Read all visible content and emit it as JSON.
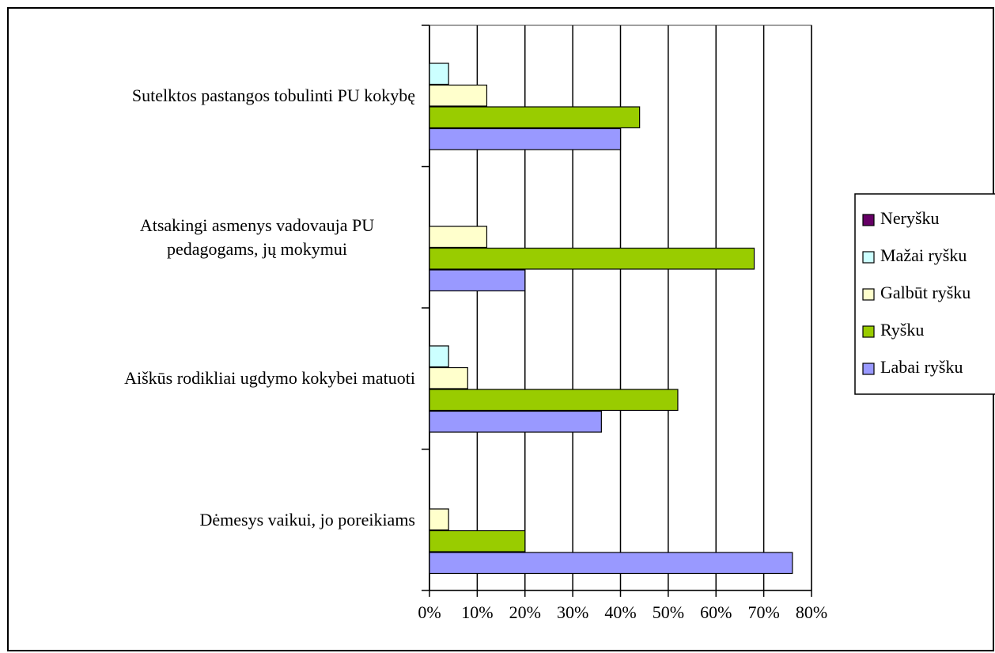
{
  "chart_data": {
    "type": "hbar",
    "categories": [
      "Sutelktos pastangos tobulinti PU kokybę",
      "Atsakingi asmenys vadovauja PU pedagogams, jų mokymui",
      "Aiškūs rodikliai ugdymo kokybei matuoti",
      "Dėmesys vaikui, jo poreikiams"
    ],
    "series": [
      {
        "name": "Neryšku",
        "color": "#660066",
        "values": [
          0,
          0,
          0,
          0
        ]
      },
      {
        "name": "Mažai ryšku",
        "color": "#ccffff",
        "values": [
          4,
          0,
          4,
          0
        ]
      },
      {
        "name": "Galbūt ryšku",
        "color": "#ffffcc",
        "values": [
          12,
          12,
          8,
          4
        ]
      },
      {
        "name": "Ryšku",
        "color": "#99cc00",
        "values": [
          44,
          68,
          52,
          20
        ]
      },
      {
        "name": "Labai ryšku",
        "color": "#9999ff",
        "values": [
          40,
          20,
          36,
          76
        ]
      }
    ],
    "xlim": [
      0,
      80
    ],
    "xticks": [
      {
        "value": 0,
        "label": "0%"
      },
      {
        "value": 10,
        "label": "10%"
      },
      {
        "value": 20,
        "label": "20%"
      },
      {
        "value": 30,
        "label": "30%"
      },
      {
        "value": 40,
        "label": "40%"
      },
      {
        "value": 50,
        "label": "50%"
      },
      {
        "value": 60,
        "label": "60%"
      },
      {
        "value": 70,
        "label": "70%"
      },
      {
        "value": 80,
        "label": "80%"
      }
    ],
    "grid": true,
    "legend": "right"
  }
}
